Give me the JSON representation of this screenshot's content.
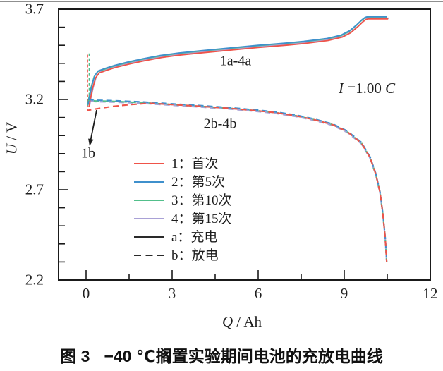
{
  "figure": {
    "caption_fig": "图 3",
    "caption_text": "−40 ℃搁置实验期间电池的充放电曲线"
  },
  "chart_data": {
    "type": "line",
    "title": "",
    "xlabel_symbol": "Q",
    "xlabel_rest": " / Ah",
    "ylabel_symbol": "U",
    "ylabel_rest": " / V",
    "x_ticks": [
      0,
      3,
      6,
      9,
      12
    ],
    "x_minor_ticks": [
      1.5,
      4.5,
      7.5,
      10.5
    ],
    "y_ticks": [
      3.7,
      3.2,
      2.7,
      2.2
    ],
    "y_minor_ticks": [
      3.6,
      3.5,
      3.4,
      3.3,
      3.1,
      3.0,
      2.9,
      2.8,
      2.6,
      2.5,
      2.4,
      2.3
    ],
    "xlim": [
      -0.96,
      12
    ],
    "ylim": [
      2.2,
      3.7
    ],
    "grid": false,
    "legend_position": "inside-lower-left",
    "colors": {
      "c1": "#ef5349",
      "c2": "#3f90cc",
      "c3": "#52bf8b",
      "c4": "#a9a1d6",
      "black": "#2b2b2b",
      "axis": "#1a1a1a"
    },
    "shapes": {
      "charge": [
        [
          0.07,
          3.165
        ],
        [
          0.12,
          3.21
        ],
        [
          0.2,
          3.27
        ],
        [
          0.3,
          3.325
        ],
        [
          0.42,
          3.352
        ],
        [
          0.7,
          3.368
        ],
        [
          1.0,
          3.383
        ],
        [
          1.5,
          3.403
        ],
        [
          2.0,
          3.42
        ],
        [
          2.6,
          3.438
        ],
        [
          3.2,
          3.451
        ],
        [
          4.0,
          3.464
        ],
        [
          5.0,
          3.479
        ],
        [
          6.0,
          3.494
        ],
        [
          7.0,
          3.507
        ],
        [
          7.6,
          3.516
        ],
        [
          8.4,
          3.532
        ],
        [
          8.9,
          3.551
        ],
        [
          9.2,
          3.576
        ],
        [
          9.45,
          3.61
        ],
        [
          9.6,
          3.633
        ],
        [
          9.72,
          3.648
        ],
        [
          9.8,
          3.652
        ],
        [
          10.5,
          3.652
        ]
      ],
      "discharge": [
        [
          0.07,
          3.197
        ],
        [
          0.3,
          3.192
        ],
        [
          1.0,
          3.189
        ],
        [
          2.0,
          3.182
        ],
        [
          3.0,
          3.172
        ],
        [
          4.0,
          3.162
        ],
        [
          5.0,
          3.151
        ],
        [
          6.0,
          3.137
        ],
        [
          6.6,
          3.127
        ],
        [
          7.3,
          3.11
        ],
        [
          7.9,
          3.09
        ],
        [
          8.6,
          3.06
        ],
        [
          9.1,
          3.022
        ],
        [
          9.6,
          2.958
        ],
        [
          9.9,
          2.878
        ],
        [
          10.1,
          2.786
        ],
        [
          10.25,
          2.682
        ],
        [
          10.35,
          2.56
        ],
        [
          10.43,
          2.43
        ],
        [
          10.48,
          2.3
        ]
      ],
      "discharge_first": [
        [
          0.06,
          3.14
        ],
        [
          0.4,
          3.149
        ],
        [
          0.9,
          3.161
        ],
        [
          1.5,
          3.171
        ],
        [
          2.2,
          3.179
        ],
        [
          3.0,
          3.172
        ],
        [
          4.0,
          3.162
        ],
        [
          5.0,
          3.151
        ],
        [
          6.0,
          3.137
        ],
        [
          6.6,
          3.127
        ],
        [
          7.3,
          3.11
        ],
        [
          7.9,
          3.09
        ],
        [
          8.6,
          3.06
        ],
        [
          9.1,
          3.022
        ],
        [
          9.6,
          2.958
        ],
        [
          9.9,
          2.878
        ],
        [
          10.1,
          2.786
        ],
        [
          10.25,
          2.682
        ],
        [
          10.35,
          2.56
        ],
        [
          10.43,
          2.43
        ],
        [
          10.48,
          2.3
        ]
      ]
    },
    "series": [
      {
        "id": "3a",
        "name": "3a 第10次 充电",
        "shape": "charge",
        "color": "#52bf8b",
        "style": "solid",
        "dv": 0.001,
        "dq": -0.02
      },
      {
        "id": "4a",
        "name": "4a 第15次 充电",
        "shape": "charge",
        "color": "#a9a1d6",
        "style": "solid",
        "dv": -0.002,
        "dq": 0.05
      },
      {
        "id": "1a",
        "name": "1a 首次 充电",
        "shape": "charge",
        "color": "#ef5349",
        "style": "solid",
        "dv": -0.006,
        "dq": 0.03
      },
      {
        "id": "2a",
        "name": "2a 第5次 充电",
        "shape": "charge",
        "color": "#3f90cc",
        "style": "solid",
        "dv": 0.006,
        "dq": 0
      },
      {
        "id": "4b",
        "name": "4b 第15次 放电",
        "shape": "discharge",
        "color": "#a9a1d6",
        "style": "dashed",
        "dv": -0.004,
        "dq": 0,
        "dashoffset": 9
      },
      {
        "id": "3b",
        "name": "3b 第10次 放电",
        "shape": "discharge",
        "color": "#52bf8b",
        "style": "dashed",
        "dv": 0,
        "dq": 0,
        "dashoffset": 5
      },
      {
        "id": "2b",
        "name": "2b 第5次 放电",
        "shape": "discharge",
        "color": "#3f90cc",
        "style": "dashed",
        "dv": 0.004,
        "dq": 0,
        "dashoffset": 0
      },
      {
        "id": "1b",
        "name": "1b 首次 放电",
        "shape": "discharge_first",
        "color": "#ef5349",
        "style": "dashed",
        "dv": 0,
        "dq": 0,
        "dashoffset": 3
      }
    ],
    "spikes": [
      {
        "id": "spike-red",
        "color": "#ef5349",
        "points": [
          [
            0.05,
            3.448
          ],
          [
            0.05,
            3.135
          ]
        ]
      },
      {
        "id": "spike-green",
        "color": "#52bf8b",
        "points": [
          [
            0.11,
            3.455
          ],
          [
            0.11,
            3.205
          ]
        ]
      }
    ],
    "annotations": {
      "charge_group": "1a-4a",
      "discharge_group": "2b-4b",
      "first_discharge": "1b",
      "current_sym": "I",
      "current_mid": " =1.00 ",
      "current_unit": "C"
    }
  },
  "legend": {
    "items": [
      {
        "label": "1：首次",
        "color": "#ef5349",
        "style": "solid"
      },
      {
        "label": "2：第5次",
        "color": "#3f90cc",
        "style": "solid"
      },
      {
        "label": "3：第10次",
        "color": "#52bf8b",
        "style": "solid"
      },
      {
        "label": "4：第15次",
        "color": "#a9a1d6",
        "style": "solid"
      },
      {
        "label": "a：充电",
        "color": "#2a2a2a",
        "style": "solid"
      },
      {
        "label": "b：放电",
        "color": "#2a2a2a",
        "style": "dashed"
      }
    ]
  }
}
